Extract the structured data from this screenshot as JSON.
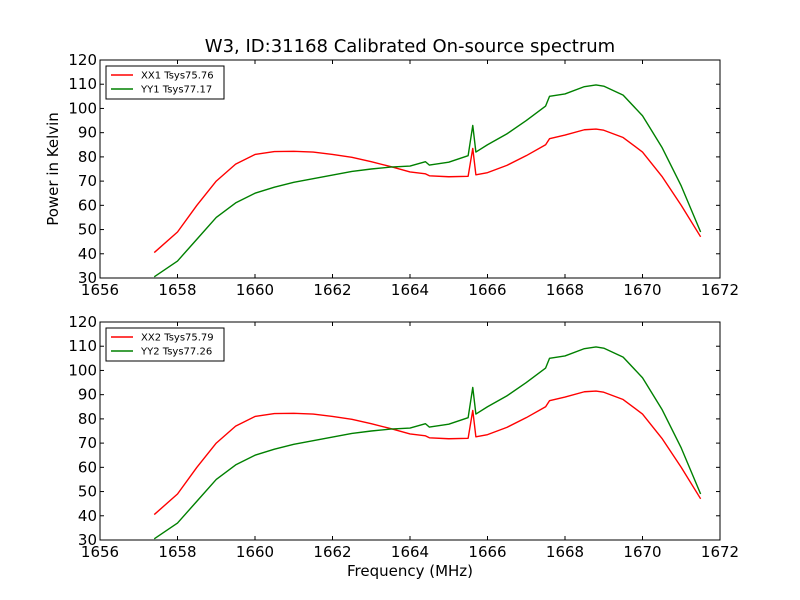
{
  "title": "W3, ID:31168 Calibrated On-source spectrum",
  "ylabel": "Power in Kelvin",
  "xlabel": "Frequency (MHz)",
  "colors": {
    "red": "#ff0000",
    "green": "#008000"
  },
  "chart_data": [
    {
      "type": "line",
      "title": "W3, ID:31168 Calibrated On-source spectrum",
      "xlabel": "",
      "ylabel": "Power in Kelvin",
      "xlim": [
        1656,
        1672
      ],
      "ylim": [
        30,
        120
      ],
      "xticks": [
        "1656",
        "1658",
        "1660",
        "1662",
        "1664",
        "1666",
        "1668",
        "1670",
        "1672"
      ],
      "yticks": [
        "30",
        "40",
        "50",
        "60",
        "70",
        "80",
        "90",
        "100",
        "110",
        "120"
      ],
      "legend_position": "top-left",
      "grid": false,
      "series": [
        {
          "name": "XX1 Tsys75.76",
          "color": "#ff0000",
          "x": [
            1657.4,
            1658.0,
            1658.5,
            1659.0,
            1659.5,
            1660.0,
            1660.5,
            1661.0,
            1661.5,
            1662.0,
            1662.5,
            1663.0,
            1663.5,
            1664.0,
            1664.4,
            1664.5,
            1665.0,
            1665.5,
            1665.62,
            1665.7,
            1666.0,
            1666.5,
            1667.0,
            1667.5,
            1667.6,
            1668.0,
            1668.5,
            1668.8,
            1669.0,
            1669.5,
            1670.0,
            1670.5,
            1671.0,
            1671.5
          ],
          "y": [
            40.5,
            49,
            60,
            70,
            77,
            81,
            82.2,
            82.3,
            82,
            81,
            79.8,
            78,
            76,
            73.8,
            73,
            72.2,
            71.8,
            72,
            83.5,
            72.6,
            73.5,
            76.5,
            80.5,
            85,
            87.5,
            89,
            91.2,
            91.5,
            91,
            88,
            82,
            72,
            60,
            47
          ]
        },
        {
          "name": "YY1 Tsys77.17",
          "color": "#008000",
          "x": [
            1657.4,
            1658.0,
            1658.5,
            1659.0,
            1659.5,
            1660.0,
            1660.5,
            1661.0,
            1661.5,
            1662.0,
            1662.5,
            1663.0,
            1663.5,
            1664.0,
            1664.4,
            1664.5,
            1665.0,
            1665.5,
            1665.62,
            1665.7,
            1666.0,
            1666.5,
            1667.0,
            1667.5,
            1667.6,
            1668.0,
            1668.5,
            1668.8,
            1669.0,
            1669.5,
            1670.0,
            1670.5,
            1671.0,
            1671.5
          ],
          "y": [
            30.5,
            37,
            46,
            55,
            61,
            65,
            67.5,
            69.5,
            71,
            72.5,
            74,
            75,
            75.8,
            76.2,
            78,
            76.6,
            77.8,
            80.5,
            93,
            82,
            85,
            89.5,
            95,
            101,
            105,
            106,
            109,
            109.7,
            109.2,
            105.5,
            97,
            84,
            68,
            49
          ]
        }
      ]
    },
    {
      "type": "line",
      "title": "",
      "xlabel": "Frequency (MHz)",
      "ylabel": "",
      "xlim": [
        1656,
        1672
      ],
      "ylim": [
        30,
        120
      ],
      "xticks": [
        "1656",
        "1658",
        "1660",
        "1662",
        "1664",
        "1666",
        "1668",
        "1670",
        "1672"
      ],
      "yticks": [
        "30",
        "40",
        "50",
        "60",
        "70",
        "80",
        "90",
        "100",
        "110",
        "120"
      ],
      "legend_position": "top-left",
      "grid": false,
      "series": [
        {
          "name": "XX2 Tsys75.79",
          "color": "#ff0000",
          "x": [
            1657.4,
            1658.0,
            1658.5,
            1659.0,
            1659.5,
            1660.0,
            1660.5,
            1661.0,
            1661.5,
            1662.0,
            1662.5,
            1663.0,
            1663.5,
            1664.0,
            1664.4,
            1664.5,
            1665.0,
            1665.5,
            1665.62,
            1665.7,
            1666.0,
            1666.5,
            1667.0,
            1667.5,
            1667.6,
            1668.0,
            1668.5,
            1668.8,
            1669.0,
            1669.5,
            1670.0,
            1670.5,
            1671.0,
            1671.5
          ],
          "y": [
            40.5,
            49,
            60,
            70,
            77,
            81,
            82.2,
            82.3,
            82,
            81,
            79.8,
            78,
            76,
            73.8,
            73,
            72.2,
            71.8,
            72,
            83.5,
            72.6,
            73.5,
            76.5,
            80.5,
            85,
            87.5,
            89,
            91.2,
            91.5,
            91,
            88,
            82,
            72,
            60,
            47
          ]
        },
        {
          "name": "YY2 Tsys77.26",
          "color": "#008000",
          "x": [
            1657.4,
            1658.0,
            1658.5,
            1659.0,
            1659.5,
            1660.0,
            1660.5,
            1661.0,
            1661.5,
            1662.0,
            1662.5,
            1663.0,
            1663.5,
            1664.0,
            1664.4,
            1664.5,
            1665.0,
            1665.5,
            1665.62,
            1665.7,
            1666.0,
            1666.5,
            1667.0,
            1667.5,
            1667.6,
            1668.0,
            1668.5,
            1668.8,
            1669.0,
            1669.5,
            1670.0,
            1670.5,
            1671.0,
            1671.5
          ],
          "y": [
            30.5,
            37,
            46,
            55,
            61,
            65,
            67.5,
            69.5,
            71,
            72.5,
            74,
            75,
            75.8,
            76.2,
            78,
            76.6,
            77.8,
            80.5,
            93,
            82,
            85,
            89.5,
            95,
            101,
            105,
            106,
            109,
            109.7,
            109.2,
            105.5,
            97,
            84,
            68,
            49
          ]
        }
      ]
    }
  ]
}
